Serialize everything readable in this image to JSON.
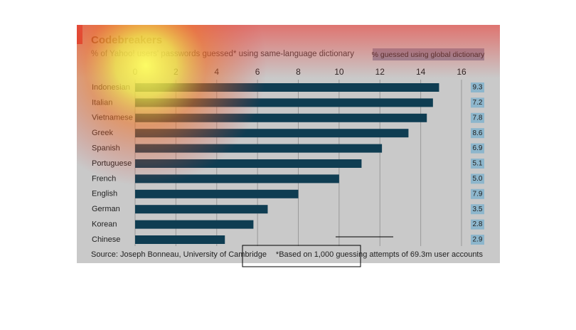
{
  "chart_data": {
    "type": "bar",
    "orientation": "horizontal",
    "title": "Codebreakers",
    "subtitle": "% of Yahoo! users' passwords guessed* using same-language dictionary",
    "categories": [
      "Indonesian",
      "Italian",
      "Vietnamese",
      "Greek",
      "Spanish",
      "Portuguese",
      "French",
      "English",
      "German",
      "Korean",
      "Chinese"
    ],
    "series": [
      {
        "color": "#0f3d52",
        "values": [
          14.9,
          14.6,
          14.3,
          13.4,
          12.1,
          11.1,
          10.0,
          8.0,
          6.5,
          5.8,
          4.4
        ]
      },
      {
        "name": "% guessed using global dictionary",
        "color": "#8db6cc",
        "values": [
          9.3,
          7.2,
          7.8,
          8.6,
          6.9,
          5.1,
          5.0,
          7.9,
          3.5,
          2.8,
          2.9
        ],
        "value_labels": [
          "9.3",
          "7.2",
          "7.8",
          "8.6",
          "6.9",
          "5.1",
          "5.0",
          "7.9",
          "3.5",
          "2.8",
          "2.9"
        ]
      }
    ],
    "xlim": [
      0,
      16
    ],
    "xticks": [
      0,
      2,
      4,
      6,
      8,
      10,
      12,
      14,
      16
    ],
    "grid": true,
    "source": "Source: Joseph Bonneau, University of Cambridge",
    "note": "*Based on 1,000 guessing attempts of 69.3m user accounts"
  }
}
